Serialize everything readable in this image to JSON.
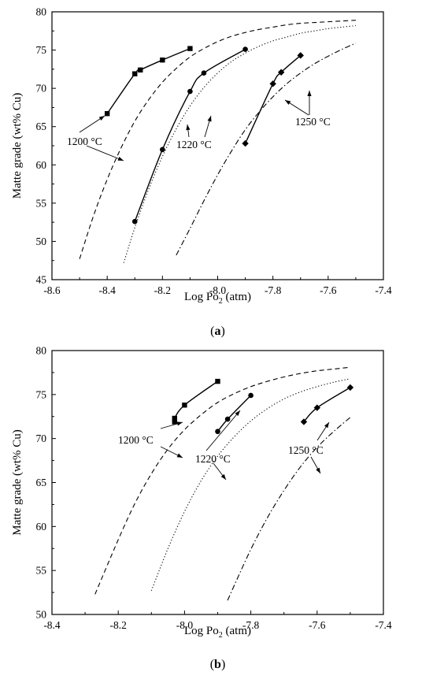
{
  "colors": {
    "ink": "#000000",
    "background": "#ffffff"
  },
  "chart_data": [
    {
      "type": "line",
      "panel_label": "a",
      "xlabel": "Log Po",
      "xlabel_sub": "2",
      "xlabel_unit": " (atm)",
      "ylabel": "Matte grade (wt% Cu)",
      "xlim": [
        -8.6,
        -7.4
      ],
      "ylim": [
        45,
        80
      ],
      "xticks": [
        "-8.6",
        "-8.4",
        "-8.2",
        "-8.0",
        "-7.8",
        "-7.6",
        "-7.4"
      ],
      "yticks": [
        "45",
        "50",
        "55",
        "60",
        "65",
        "70",
        "75",
        "80"
      ],
      "model_curves": [
        {
          "name": "1200 °C",
          "style": "dashed",
          "x": [
            -8.5,
            -8.45,
            -8.4,
            -8.35,
            -8.3,
            -8.25,
            -8.2,
            -8.15,
            -8.1,
            -8.05,
            -8.0,
            -7.95,
            -7.9,
            -7.85,
            -7.8,
            -7.75,
            -7.7,
            -7.65,
            -7.6,
            -7.55,
            -7.5
          ],
          "y": [
            47.7,
            53.3,
            58.1,
            62.2,
            65.7,
            68.5,
            70.8,
            72.6,
            74.1,
            75.2,
            76.1,
            76.8,
            77.3,
            77.7,
            78.0,
            78.3,
            78.5,
            78.6,
            78.7,
            78.8,
            78.9
          ]
        },
        {
          "name": "1220 °C",
          "style": "dotted",
          "x": [
            -8.34,
            -8.3,
            -8.25,
            -8.2,
            -8.15,
            -8.1,
            -8.05,
            -8.0,
            -7.95,
            -7.9,
            -7.85,
            -7.8,
            -7.75,
            -7.7,
            -7.65,
            -7.6,
            -7.55,
            -7.5
          ],
          "y": [
            47.2,
            51.8,
            56.8,
            61.1,
            64.7,
            67.7,
            70.1,
            72.0,
            73.5,
            74.6,
            75.5,
            76.2,
            76.7,
            77.2,
            77.5,
            77.8,
            78.0,
            78.2
          ]
        },
        {
          "name": "1250 °C",
          "style": "dashdot",
          "x": [
            -8.15,
            -8.1,
            -8.05,
            -8.0,
            -7.95,
            -7.9,
            -7.85,
            -7.8,
            -7.75,
            -7.7,
            -7.65,
            -7.6,
            -7.55,
            -7.5
          ],
          "y": [
            48.2,
            51.7,
            55.3,
            58.7,
            61.8,
            64.6,
            66.9,
            68.9,
            70.6,
            72.0,
            73.2,
            74.2,
            75.1,
            75.9
          ]
        }
      ],
      "experimental_series": [
        {
          "name": "1200 °C",
          "marker": "square",
          "x": [
            -8.4,
            -8.3,
            -8.28,
            -8.2,
            -8.1
          ],
          "y": [
            66.7,
            71.9,
            72.4,
            73.7,
            75.2
          ]
        },
        {
          "name": "1220 °C",
          "marker": "circle",
          "x": [
            -8.3,
            -8.2,
            -8.1,
            -8.05,
            -7.9
          ],
          "y": [
            52.6,
            62.0,
            69.6,
            72.0,
            75.1
          ]
        },
        {
          "name": "1250 °C",
          "marker": "diamond",
          "x": [
            -7.9,
            -7.8,
            -7.77,
            -7.7
          ],
          "y": [
            62.8,
            70.6,
            72.1,
            74.3
          ]
        }
      ],
      "annotations": [
        {
          "text": "1200 °C"
        },
        {
          "text": "1220 °C"
        },
        {
          "text": "1250 °C"
        }
      ]
    },
    {
      "type": "line",
      "panel_label": "b",
      "xlabel": "Log Po",
      "xlabel_sub": "2",
      "xlabel_unit": " (atm)",
      "ylabel": "Matte grade (wt% Cu)",
      "xlim": [
        -8.4,
        -7.4
      ],
      "ylim": [
        50,
        80
      ],
      "xticks": [
        "-8.4",
        "-8.2",
        "-8.0",
        "-7.8",
        "-7.6",
        "-7.4"
      ],
      "yticks": [
        "50",
        "55",
        "60",
        "65",
        "70",
        "75",
        "80"
      ],
      "model_curves": [
        {
          "name": "1200 °C",
          "style": "dashed",
          "x": [
            -8.27,
            -8.2,
            -8.15,
            -8.1,
            -8.05,
            -8.0,
            -7.95,
            -7.9,
            -7.85,
            -7.8,
            -7.75,
            -7.7,
            -7.65,
            -7.6,
            -7.55,
            -7.5
          ],
          "y": [
            52.3,
            58.5,
            62.6,
            66.0,
            68.8,
            71.0,
            72.7,
            74.1,
            75.1,
            75.9,
            76.5,
            77.0,
            77.4,
            77.7,
            77.9,
            78.1
          ]
        },
        {
          "name": "1220 °C",
          "style": "dotted",
          "x": [
            -8.1,
            -8.05,
            -8.0,
            -7.95,
            -7.9,
            -7.85,
            -7.8,
            -7.75,
            -7.7,
            -7.65,
            -7.6,
            -7.55,
            -7.5
          ],
          "y": [
            52.7,
            57.5,
            61.7,
            65.2,
            68.0,
            70.2,
            72.0,
            73.4,
            74.5,
            75.3,
            75.9,
            76.4,
            76.8
          ]
        },
        {
          "name": "1250 °C",
          "style": "dashdot",
          "x": [
            -7.87,
            -7.85,
            -7.8,
            -7.75,
            -7.7,
            -7.65,
            -7.6,
            -7.55,
            -7.5
          ],
          "y": [
            51.6,
            53.3,
            57.4,
            61.0,
            64.1,
            66.8,
            69.0,
            70.8,
            72.4
          ]
        }
      ],
      "experimental_series": [
        {
          "name": "1200 °C",
          "marker": "square",
          "x": [
            -8.03,
            -8.03,
            -8.0,
            -7.9
          ],
          "y": [
            71.9,
            72.3,
            73.8,
            76.5
          ]
        },
        {
          "name": "1220 °C",
          "marker": "circle",
          "x": [
            -7.9,
            -7.87,
            -7.8
          ],
          "y": [
            70.8,
            72.2,
            74.9
          ]
        },
        {
          "name": "1250 °C",
          "marker": "diamond",
          "x": [
            -7.64,
            -7.6,
            -7.5
          ],
          "y": [
            71.9,
            73.5,
            75.8
          ]
        }
      ],
      "annotations": [
        {
          "text": "1200 °C"
        },
        {
          "text": "1220 °C"
        },
        {
          "text": "1250 °C"
        }
      ]
    }
  ]
}
